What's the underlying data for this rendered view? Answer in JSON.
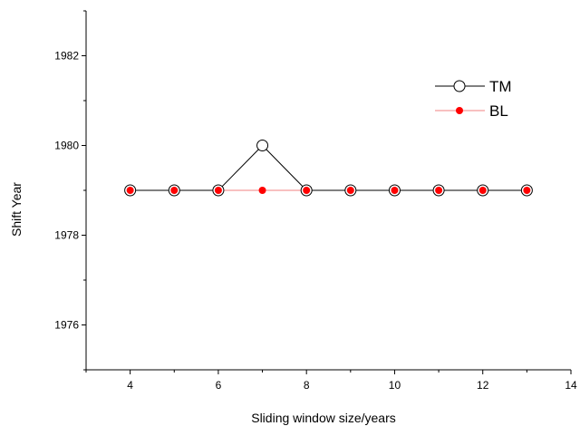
{
  "chart_data": {
    "type": "line",
    "title": "",
    "xlabel": "Sliding window size/years",
    "ylabel": "Shift Year",
    "xlim": [
      3,
      14
    ],
    "ylim": [
      1975,
      1983
    ],
    "x_ticks": [
      4,
      6,
      8,
      10,
      12,
      14
    ],
    "y_ticks": [
      1976,
      1978,
      1980,
      1982
    ],
    "grid": false,
    "legend_position": "top-right",
    "x": [
      4,
      5,
      6,
      7,
      8,
      9,
      10,
      11,
      12,
      13
    ],
    "series": [
      {
        "name": "TM",
        "values": [
          1979,
          1979,
          1979,
          1980,
          1979,
          1979,
          1979,
          1979,
          1979,
          1979
        ],
        "color": "#000000",
        "marker": "open-circle"
      },
      {
        "name": "BL",
        "values": [
          1979,
          1979,
          1979,
          1979,
          1979,
          1979,
          1979,
          1979,
          1979,
          1979
        ],
        "color": "#ff0000",
        "marker": "filled-circle"
      }
    ]
  }
}
